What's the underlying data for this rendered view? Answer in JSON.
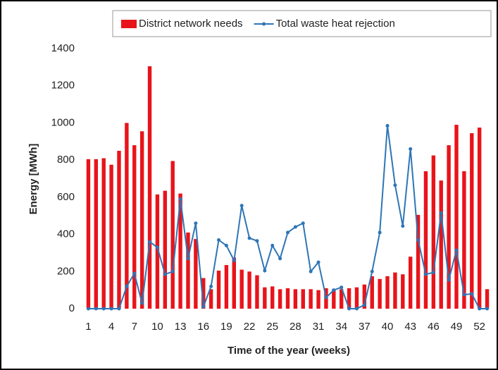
{
  "chart_data": {
    "type": "bar_line",
    "x_label": "Time of the year (weeks)",
    "y_label": "Energy [MWh]",
    "x": [
      1,
      2,
      3,
      4,
      5,
      6,
      7,
      8,
      9,
      10,
      11,
      12,
      13,
      14,
      15,
      16,
      17,
      18,
      19,
      20,
      21,
      22,
      23,
      24,
      25,
      26,
      27,
      28,
      29,
      30,
      31,
      32,
      33,
      34,
      35,
      36,
      37,
      38,
      39,
      40,
      41,
      42,
      43,
      44,
      45,
      46,
      47,
      48,
      49,
      50,
      51,
      52,
      53
    ],
    "xlim": [
      0.5,
      53.5
    ],
    "xticks": [
      1,
      4,
      7,
      10,
      13,
      16,
      19,
      22,
      25,
      28,
      31,
      34,
      37,
      40,
      43,
      46,
      49,
      52
    ],
    "ylim": [
      0,
      1400
    ],
    "yticks": [
      0,
      200,
      400,
      600,
      800,
      1000,
      1200,
      1400
    ],
    "grid": false,
    "legend": "top",
    "series": [
      {
        "name": "District network needs",
        "type": "bar",
        "color": "#e8141a",
        "values": [
          805,
          805,
          810,
          775,
          850,
          1000,
          880,
          955,
          1305,
          615,
          635,
          795,
          620,
          410,
          375,
          165,
          105,
          205,
          235,
          275,
          210,
          200,
          180,
          115,
          120,
          105,
          110,
          105,
          105,
          105,
          100,
          110,
          105,
          105,
          110,
          115,
          130,
          175,
          160,
          175,
          195,
          185,
          280,
          505,
          740,
          825,
          690,
          880,
          990,
          740,
          945,
          975,
          105
        ]
      },
      {
        "name": "Total waste heat rejection",
        "type": "line",
        "color": "#2e75b6",
        "values": [
          0,
          0,
          0,
          0,
          0,
          120,
          190,
          30,
          360,
          330,
          185,
          200,
          590,
          270,
          460,
          10,
          120,
          370,
          340,
          260,
          555,
          380,
          365,
          205,
          340,
          270,
          410,
          440,
          460,
          200,
          250,
          60,
          100,
          115,
          0,
          0,
          20,
          200,
          410,
          985,
          665,
          445,
          860,
          370,
          185,
          195,
          515,
          155,
          315,
          75,
          80,
          0,
          0
        ]
      }
    ]
  }
}
